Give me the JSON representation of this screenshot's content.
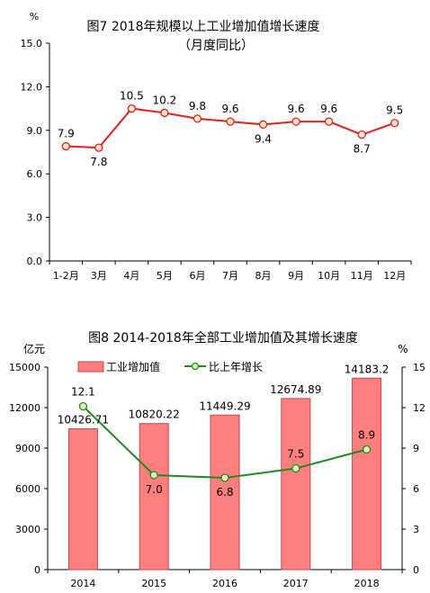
{
  "chart_data": [
    {
      "type": "line",
      "title": "图7   2018年规模以上工业增加值增长速度",
      "subtitle": "（月度同比）",
      "ylabel": "%",
      "categories": [
        "1-2月",
        "3月",
        "4月",
        "5月",
        "6月",
        "7月",
        "8月",
        "9月",
        "10月",
        "11月",
        "12月"
      ],
      "values": [
        7.9,
        7.8,
        10.5,
        10.2,
        9.8,
        9.6,
        9.4,
        9.6,
        9.6,
        8.7,
        9.5
      ],
      "value_labels": [
        "7.9",
        "7.8",
        "10.5",
        "10.2",
        "9.8",
        "9.6",
        "9.4",
        "9.6",
        "9.6",
        "8.7",
        "9.5"
      ],
      "ylim": [
        0,
        15
      ],
      "yticks": [
        "0.0",
        "3.0",
        "6.0",
        "9.0",
        "12.0",
        "15.0"
      ],
      "grid": false,
      "colors": {
        "line": "#e01f1f",
        "marker_fill": "#fde9c8",
        "marker_stroke": "#e01f1f"
      }
    },
    {
      "type": "bar",
      "title": "图8    2014-2018年全部工业增加值及其增长速度",
      "ylabel_left": "亿元",
      "ylabel_right": "%",
      "categories": [
        "2014",
        "2015",
        "2016",
        "2017",
        "2018"
      ],
      "series": [
        {
          "name": "工业增加值",
          "type": "bar",
          "axis": "left",
          "values": [
            10426.71,
            10820.22,
            11449.29,
            12674.89,
            14183.2
          ],
          "value_labels": [
            "10426.71",
            "10820.22",
            "11449.29",
            "12674.89",
            "14183.2"
          ]
        },
        {
          "name": "比上年增长",
          "type": "line",
          "axis": "right",
          "values": [
            12.1,
            7.0,
            6.8,
            7.5,
            8.9
          ],
          "value_labels": [
            "12.1",
            "7.0",
            "6.8",
            "7.5",
            "8.9"
          ]
        }
      ],
      "ylim_left": [
        0,
        15000
      ],
      "yticks_left": [
        "0",
        "3000",
        "6000",
        "9000",
        "12000",
        "15000"
      ],
      "ylim_right": [
        0,
        15
      ],
      "yticks_right": [
        "0",
        "3",
        "6",
        "9",
        "12",
        "15"
      ],
      "legend_position": "top",
      "grid": false,
      "colors": {
        "bar_fill": "#ff7f7f",
        "bar_stroke": "#c84848",
        "line": "#1e8c1e",
        "marker_fill": "#e3f5c2",
        "marker_stroke": "#1e8c1e"
      }
    }
  ]
}
